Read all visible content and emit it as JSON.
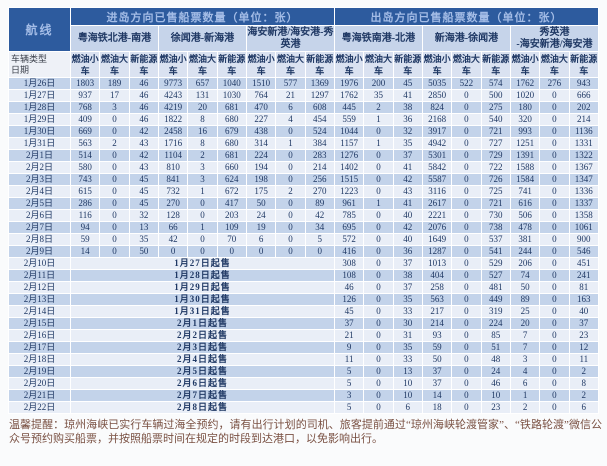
{
  "colors": {
    "header_bg": "#2d5b9e",
    "header_text": "#a3bce6",
    "route_row_bg": "#c6d4ea",
    "vehicle_row_bg": "#dae2f1",
    "band_dark": "#c3d3ea",
    "band_light": "#e9eef7",
    "cell_text": "#1f3864",
    "footer_text": "#7a5143"
  },
  "table": {
    "corner_title": "航线",
    "corner_label_top": "车辆类型",
    "corner_label_bottom": "日期",
    "sections": [
      {
        "title": "进岛方向已售船票数量（单位：张）",
        "routes": [
          "粤海铁北港-南港",
          "徐闻港-新海港",
          "海安新港/海安港-秀英港"
        ]
      },
      {
        "title": "出岛方向已售船票数量（单位：张）",
        "routes": [
          "粤海铁南港-北港",
          "新海港-徐闻港",
          "秀英港\n-海安新港/海安港"
        ]
      }
    ],
    "vehicle_types": [
      "燃油小车",
      "燃油大车",
      "新能源车"
    ],
    "rows": [
      {
        "date": "1月26日",
        "inbound": [
          1803,
          189,
          46,
          9773,
          657,
          1040,
          1510,
          577,
          1369
        ],
        "outbound": [
          1976,
          200,
          45,
          5035,
          522,
          574,
          1762,
          276,
          943
        ]
      },
      {
        "date": "1月27日",
        "inbound": [
          937,
          17,
          46,
          4243,
          131,
          1030,
          764,
          21,
          1297
        ],
        "outbound": [
          1762,
          35,
          41,
          2850,
          0,
          500,
          1020,
          0,
          666
        ]
      },
      {
        "date": "1月28日",
        "inbound": [
          768,
          3,
          46,
          4219,
          20,
          681,
          470,
          6,
          608
        ],
        "outbound": [
          445,
          2,
          38,
          824,
          0,
          275,
          180,
          0,
          202
        ]
      },
      {
        "date": "1月29日",
        "inbound": [
          409,
          0,
          46,
          1822,
          8,
          680,
          227,
          4,
          454
        ],
        "outbound": [
          559,
          1,
          36,
          2168,
          0,
          540,
          320,
          0,
          214
        ]
      },
      {
        "date": "1月30日",
        "inbound": [
          669,
          0,
          42,
          2458,
          16,
          679,
          438,
          0,
          524
        ],
        "outbound": [
          1044,
          0,
          32,
          3917,
          0,
          721,
          993,
          0,
          1136
        ]
      },
      {
        "date": "1月31日",
        "inbound": [
          563,
          2,
          43,
          1716,
          8,
          680,
          314,
          1,
          384
        ],
        "outbound": [
          1157,
          1,
          35,
          4942,
          0,
          727,
          1251,
          0,
          1331
        ]
      },
      {
        "date": "2月1日",
        "inbound": [
          514,
          0,
          42,
          1104,
          2,
          681,
          224,
          0,
          283
        ],
        "outbound": [
          1276,
          0,
          37,
          5301,
          0,
          729,
          1391,
          0,
          1322
        ]
      },
      {
        "date": "2月2日",
        "inbound": [
          580,
          0,
          43,
          810,
          3,
          660,
          194,
          0,
          214
        ],
        "outbound": [
          1402,
          0,
          41,
          5842,
          0,
          722,
          1588,
          0,
          1367
        ]
      },
      {
        "date": "2月3日",
        "inbound": [
          743,
          0,
          45,
          841,
          3,
          624,
          198,
          0,
          256
        ],
        "outbound": [
          1515,
          0,
          42,
          5587,
          0,
          726,
          1584,
          0,
          1347
        ]
      },
      {
        "date": "2月4日",
        "inbound": [
          615,
          0,
          45,
          732,
          1,
          672,
          175,
          2,
          270
        ],
        "outbound": [
          1223,
          0,
          43,
          3116,
          0,
          725,
          741,
          0,
          1336
        ]
      },
      {
        "date": "2月5日",
        "inbound": [
          286,
          0,
          45,
          270,
          0,
          417,
          50,
          0,
          89
        ],
        "outbound": [
          961,
          1,
          41,
          2617,
          0,
          721,
          616,
          0,
          1337
        ]
      },
      {
        "date": "2月6日",
        "inbound": [
          116,
          0,
          32,
          128,
          0,
          203,
          24,
          0,
          42
        ],
        "outbound": [
          785,
          0,
          40,
          2221,
          0,
          730,
          506,
          0,
          1358
        ]
      },
      {
        "date": "2月7日",
        "inbound": [
          94,
          0,
          13,
          66,
          1,
          109,
          19,
          0,
          34
        ],
        "outbound": [
          695,
          0,
          42,
          2076,
          0,
          738,
          478,
          0,
          1061
        ]
      },
      {
        "date": "2月8日",
        "inbound": [
          59,
          0,
          35,
          42,
          0,
          70,
          6,
          0,
          5
        ],
        "outbound": [
          572,
          0,
          40,
          1649,
          0,
          537,
          381,
          0,
          900
        ]
      },
      {
        "date": "2月9日",
        "inbound": [
          14,
          0,
          50,
          0,
          0,
          0,
          0,
          0,
          0
        ],
        "outbound": [
          416,
          0,
          36,
          1287,
          0,
          541,
          244,
          0,
          546
        ]
      },
      {
        "date": "2月10日",
        "inbound_note": "1月27日起售",
        "outbound": [
          308,
          0,
          37,
          1013,
          0,
          529,
          206,
          0,
          451
        ]
      },
      {
        "date": "2月11日",
        "inbound_note": "1月28日起售",
        "outbound": [
          108,
          0,
          38,
          404,
          0,
          527,
          74,
          0,
          241
        ]
      },
      {
        "date": "2月12日",
        "inbound_note": "1月29日起售",
        "outbound": [
          46,
          0,
          37,
          258,
          0,
          481,
          50,
          0,
          81
        ]
      },
      {
        "date": "2月13日",
        "inbound_note": "1月30日起售",
        "outbound": [
          126,
          0,
          35,
          563,
          0,
          449,
          89,
          0,
          163
        ]
      },
      {
        "date": "2月14日",
        "inbound_note": "1月31日起售",
        "outbound": [
          45,
          0,
          33,
          217,
          0,
          319,
          25,
          0,
          40
        ]
      },
      {
        "date": "2月15日",
        "inbound_note": "2月1日起售",
        "outbound": [
          37,
          0,
          30,
          214,
          0,
          224,
          20,
          0,
          37
        ]
      },
      {
        "date": "2月16日",
        "inbound_note": "2月2日起售",
        "outbound": [
          21,
          0,
          31,
          93,
          0,
          85,
          7,
          0,
          23
        ]
      },
      {
        "date": "2月17日",
        "inbound_note": "2月3日起售",
        "outbound": [
          9,
          0,
          35,
          59,
          0,
          51,
          7,
          0,
          12
        ]
      },
      {
        "date": "2月18日",
        "inbound_note": "2月4日起售",
        "outbound": [
          11,
          0,
          33,
          50,
          0,
          48,
          3,
          0,
          11
        ]
      },
      {
        "date": "2月19日",
        "inbound_note": "2月5日起售",
        "outbound": [
          5,
          0,
          13,
          37,
          0,
          24,
          4,
          0,
          2
        ]
      },
      {
        "date": "2月20日",
        "inbound_note": "2月6日起售",
        "outbound": [
          5,
          0,
          10,
          37,
          0,
          46,
          6,
          0,
          8
        ]
      },
      {
        "date": "2月21日",
        "inbound_note": "2月7日起售",
        "outbound": [
          3,
          0,
          10,
          14,
          0,
          10,
          1,
          0,
          2
        ]
      },
      {
        "date": "2月22日",
        "inbound_note": "2月8日起售",
        "outbound": [
          5,
          0,
          6,
          18,
          0,
          23,
          2,
          0,
          6
        ]
      }
    ]
  },
  "footer": {
    "text": "温馨提醒：琼州海峡已实行车辆过海全预约，请有出行计划的司机、旅客提前通过“琼州海峡轮渡管家”、“铁路轮渡”微信公众号预约购买船票，并按照船票时间在规定的时段到达港口，以免影响出行。"
  }
}
